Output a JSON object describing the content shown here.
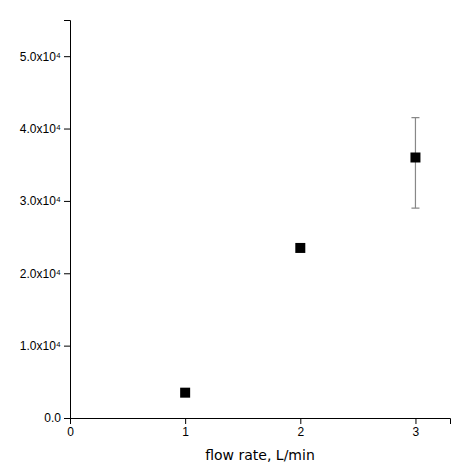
{
  "chart_data": {
    "type": "scatter",
    "xlabel": "flow rate, L/min",
    "x": [
      1,
      2,
      3
    ],
    "values": [
      3500,
      23500,
      36000
    ],
    "error_upper": [
      0,
      0,
      5500
    ],
    "error_lower": [
      0,
      0,
      7000
    ],
    "color": "black",
    "marker": "square",
    "xlim": [
      0,
      3.3
    ],
    "ylim": [
      0,
      55000
    ],
    "xticks": [
      0,
      1,
      2,
      3
    ],
    "yticks": [
      {
        "value": 0,
        "label": "0.0"
      },
      {
        "value": 10000,
        "label": "1.0x10⁴"
      },
      {
        "value": 20000,
        "label": "2.0x10⁴"
      },
      {
        "value": 30000,
        "label": "3.0x10⁴"
      },
      {
        "value": 40000,
        "label": "4.0x10⁴"
      },
      {
        "value": 50000,
        "label": "5.0x10⁴"
      }
    ],
    "grid": false
  }
}
